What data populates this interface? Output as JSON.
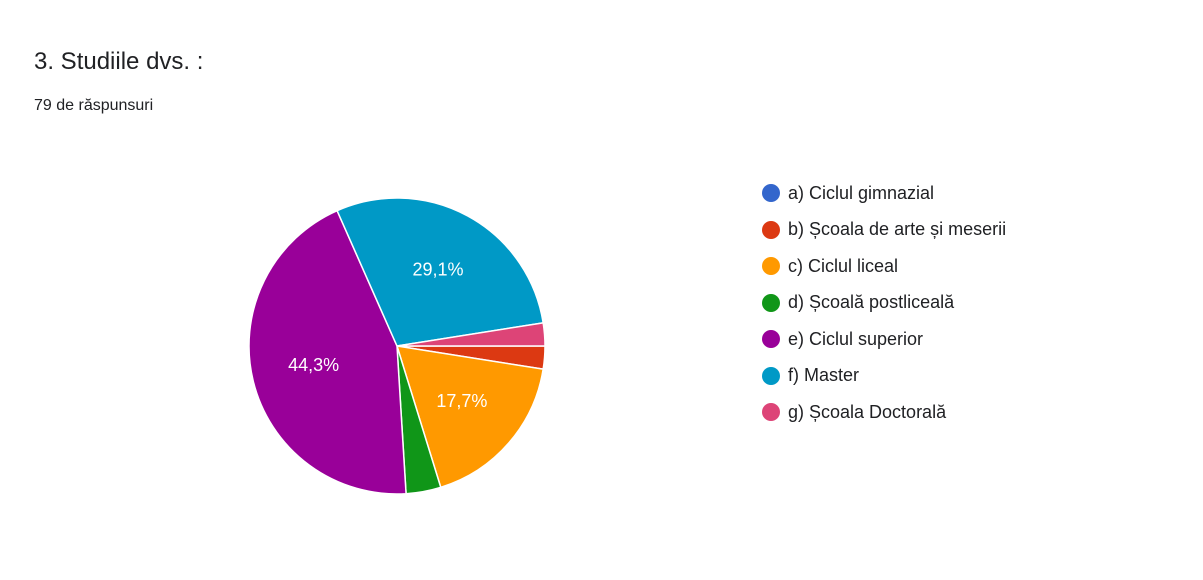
{
  "title": "3. Studiile dvs. :",
  "subtitle": "79 de răspunsuri",
  "chart_data": {
    "type": "pie",
    "legend_position": "right",
    "categories": [
      "a) Ciclul gimnazial",
      "b) Școala de arte și meserii",
      "c) Ciclul liceal",
      "d) Școală postliceală",
      "e) Ciclul superior",
      "f) Master",
      "g) Școala Doctorală"
    ],
    "values": [
      0.0,
      2.5,
      17.7,
      3.8,
      44.3,
      29.1,
      2.5
    ],
    "data_labels": [
      "",
      "",
      "17,7%",
      "",
      "44,3%",
      "29,1%",
      ""
    ],
    "colors": [
      "#3366cc",
      "#dc3912",
      "#ff9900",
      "#109618",
      "#990099",
      "#0099c6",
      "#dd4477"
    ]
  }
}
